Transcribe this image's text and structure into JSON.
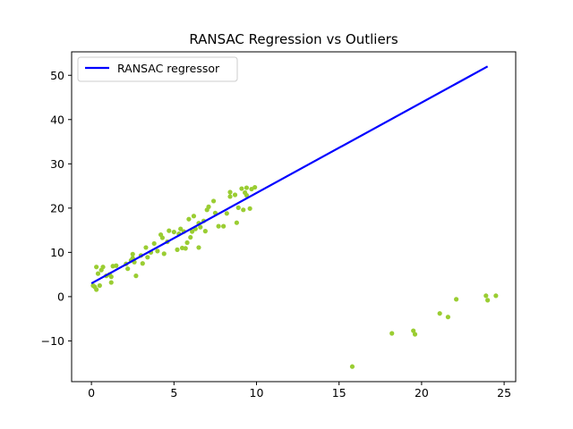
{
  "chart_data": {
    "type": "scatter",
    "title": "RANSAC Regression vs Outliers",
    "xlabel": "",
    "ylabel": "",
    "xlim": [
      -1.2,
      25.7
    ],
    "ylim": [
      -19.2,
      55.3
    ],
    "xticks": [
      0,
      5,
      10,
      15,
      20,
      25
    ],
    "yticks": [
      -10,
      0,
      10,
      20,
      30,
      40,
      50
    ],
    "tick_labels_x": [
      "0",
      "5",
      "10",
      "15",
      "20",
      "25"
    ],
    "tick_labels_y": [
      "−10",
      "0",
      "10",
      "20",
      "30",
      "40",
      "50"
    ],
    "grid": false,
    "legend": {
      "location": "upper-left",
      "entries": [
        "RANSAC regressor"
      ]
    },
    "colors": {
      "points": "#9acd32",
      "line": "#0000ff",
      "axes": "#000000"
    },
    "series": [
      {
        "kind": "scatter",
        "points": [
          [
            0.1,
            2.5
          ],
          [
            0.2,
            2.2
          ],
          [
            0.3,
            6.7
          ],
          [
            0.3,
            1.6
          ],
          [
            0.4,
            5.2
          ],
          [
            0.5,
            2.5
          ],
          [
            0.6,
            6.0
          ],
          [
            0.7,
            6.7
          ],
          [
            0.9,
            4.7
          ],
          [
            1.1,
            5.0
          ],
          [
            1.2,
            3.2
          ],
          [
            1.2,
            4.5
          ],
          [
            1.3,
            6.9
          ],
          [
            1.5,
            7.0
          ],
          [
            2.1,
            7.4
          ],
          [
            2.2,
            6.3
          ],
          [
            2.4,
            8.2
          ],
          [
            2.5,
            9.6
          ],
          [
            2.5,
            8.7
          ],
          [
            2.6,
            7.8
          ],
          [
            2.7,
            4.7
          ],
          [
            3.0,
            9.3
          ],
          [
            3.1,
            7.5
          ],
          [
            3.3,
            11.1
          ],
          [
            3.4,
            8.9
          ],
          [
            3.6,
            10.0
          ],
          [
            3.8,
            12.0
          ],
          [
            4.0,
            10.3
          ],
          [
            4.2,
            14.0
          ],
          [
            4.3,
            13.3
          ],
          [
            4.4,
            9.7
          ],
          [
            4.6,
            12.4
          ],
          [
            4.7,
            14.9
          ],
          [
            5.0,
            14.6
          ],
          [
            5.2,
            10.6
          ],
          [
            5.3,
            14.2
          ],
          [
            5.4,
            15.3
          ],
          [
            5.5,
            11.0
          ],
          [
            5.6,
            14.7
          ],
          [
            5.7,
            10.9
          ],
          [
            5.8,
            12.2
          ],
          [
            5.9,
            17.5
          ],
          [
            6.0,
            13.4
          ],
          [
            6.1,
            14.7
          ],
          [
            6.2,
            18.2
          ],
          [
            6.3,
            15.3
          ],
          [
            6.5,
            16.6
          ],
          [
            6.5,
            11.1
          ],
          [
            6.6,
            15.7
          ],
          [
            6.8,
            17.1
          ],
          [
            6.9,
            14.8
          ],
          [
            7.0,
            19.6
          ],
          [
            7.1,
            20.3
          ],
          [
            7.4,
            21.6
          ],
          [
            7.5,
            18.9
          ],
          [
            7.7,
            15.9
          ],
          [
            8.0,
            15.9
          ],
          [
            8.2,
            18.8
          ],
          [
            8.4,
            22.6
          ],
          [
            8.4,
            23.6
          ],
          [
            8.7,
            23.0
          ],
          [
            8.8,
            16.7
          ],
          [
            8.9,
            20.1
          ],
          [
            9.1,
            24.4
          ],
          [
            9.2,
            19.6
          ],
          [
            9.3,
            23.5
          ],
          [
            9.4,
            22.9
          ],
          [
            9.4,
            24.6
          ],
          [
            9.6,
            19.9
          ],
          [
            9.7,
            24.3
          ],
          [
            9.9,
            24.7
          ],
          [
            15.8,
            -15.8
          ],
          [
            18.2,
            -8.3
          ],
          [
            19.5,
            -7.7
          ],
          [
            19.6,
            -8.5
          ],
          [
            21.1,
            -3.8
          ],
          [
            21.6,
            -4.6
          ],
          [
            22.1,
            -0.6
          ],
          [
            23.9,
            0.2
          ],
          [
            24.0,
            -0.8
          ],
          [
            24.5,
            0.2
          ]
        ]
      },
      {
        "kind": "line",
        "name": "RANSAC regressor",
        "x": [
          0,
          24
        ],
        "y": [
          3.0,
          52.0
        ]
      }
    ]
  }
}
